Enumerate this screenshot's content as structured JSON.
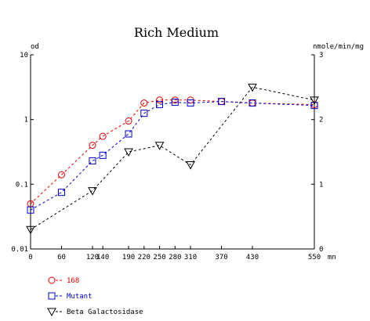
{
  "chart_data": {
    "type": "line",
    "title": "Rich Medium",
    "y_left_label": "od",
    "y_right_label": "nmole/min/mg",
    "x_unit_label": "mn",
    "xlim": [
      0,
      550
    ],
    "ylim_left": [
      0.01,
      10
    ],
    "y_left_scale": "log",
    "ylim_right": [
      0,
      3
    ],
    "x_ticks": [
      0,
      60,
      120,
      140,
      190,
      220,
      250,
      280,
      310,
      370,
      430,
      550
    ],
    "x_tick_labels": [
      "0",
      "60",
      "120",
      "140",
      "190",
      "220",
      "250",
      "280",
      "310",
      "370",
      "430",
      "550"
    ],
    "y_left_ticks": [
      0.01,
      0.1,
      1,
      10
    ],
    "y_left_tick_labels": [
      "0.01",
      "0.1",
      "1",
      "10"
    ],
    "y_right_ticks": [
      0,
      1,
      2,
      3
    ],
    "y_right_tick_labels": [
      "0",
      "1",
      "2",
      "3"
    ],
    "grid": false,
    "legend_position": "bottom-left",
    "series": [
      {
        "name": "168",
        "axis": "left",
        "color": "#e00000",
        "marker": "circle",
        "x": [
          0,
          60,
          120,
          140,
          190,
          220,
          250,
          280,
          310,
          370,
          430,
          550
        ],
        "y": [
          0.05,
          0.14,
          0.4,
          0.55,
          0.95,
          1.8,
          2.0,
          2.0,
          2.0,
          1.9,
          1.8,
          1.7
        ]
      },
      {
        "name": "Mutant",
        "axis": "left",
        "color": "#0000cc",
        "marker": "square",
        "x": [
          0,
          60,
          120,
          140,
          190,
          220,
          250,
          280,
          310,
          370,
          430,
          550
        ],
        "y": [
          0.04,
          0.075,
          0.23,
          0.28,
          0.6,
          1.25,
          1.7,
          1.85,
          1.8,
          1.9,
          1.8,
          1.65
        ]
      },
      {
        "name": "Beta Galactosidase",
        "axis": "right",
        "color": "#000000",
        "marker": "triangle-down",
        "x": [
          0,
          120,
          190,
          250,
          310,
          430,
          550
        ],
        "y": [
          0.3,
          0.9,
          1.5,
          1.6,
          1.3,
          2.5,
          2.3
        ]
      }
    ]
  }
}
